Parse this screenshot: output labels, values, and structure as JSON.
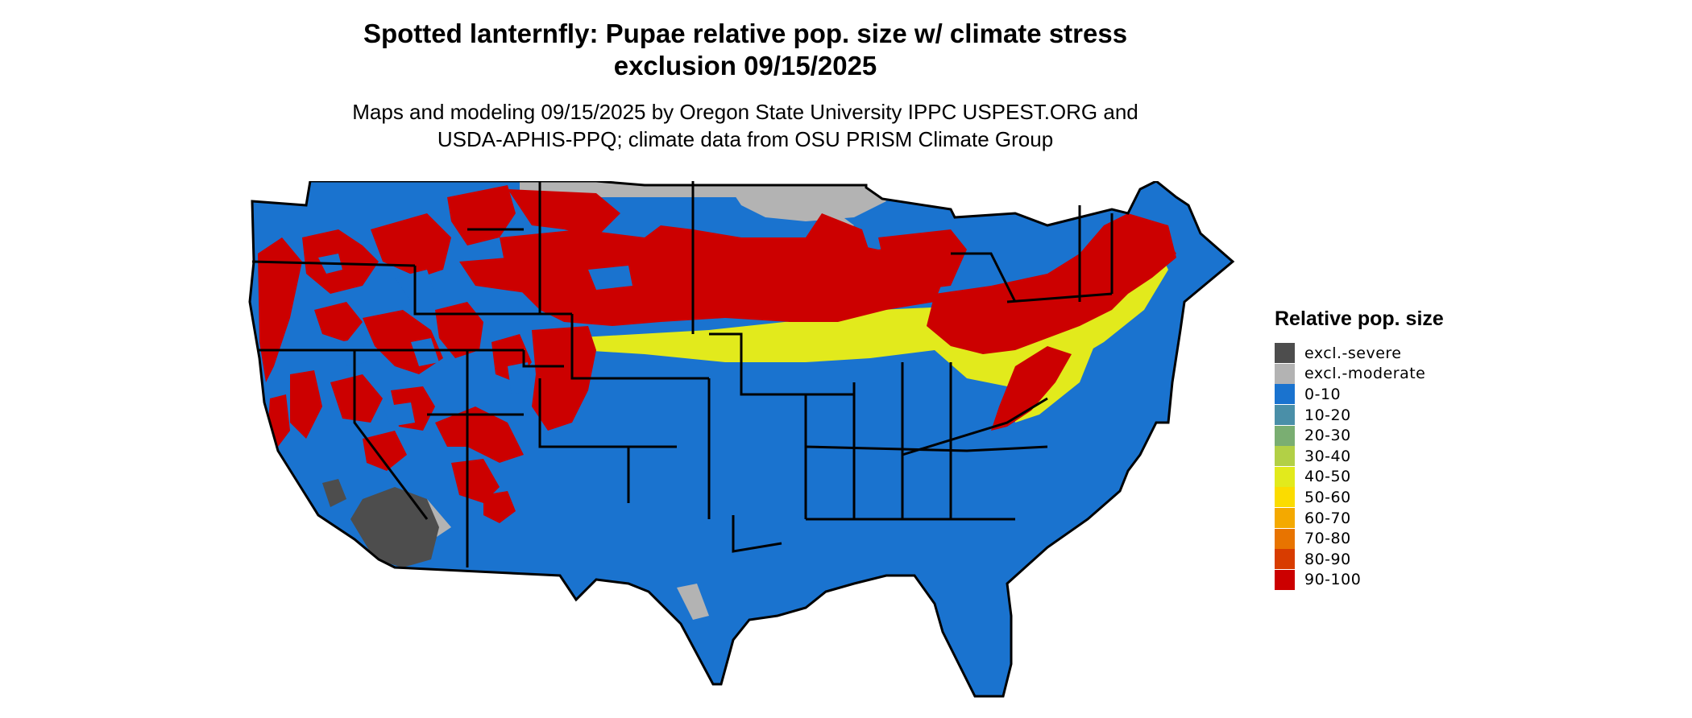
{
  "map": {
    "title_lines": [
      "Spotted lanternfly: Pupae relative pop. size w/ climate stress",
      "exclusion 09/15/2025"
    ],
    "subtitle_lines": [
      "Maps and modeling 09/15/2025 by Oregon State University IPPC USPEST.ORG and",
      "USDA-APHIS-PPQ; climate data from OSU PRISM Climate Group"
    ],
    "region": "Contiguous United States",
    "base_color": "#1a73cf",
    "border_color": "#000000"
  },
  "legend": {
    "title": "Relative pop. size",
    "items": [
      {
        "label": "excl.-severe",
        "color": "#4d4d4d"
      },
      {
        "label": "excl.-moderate",
        "color": "#b3b3b3"
      },
      {
        "label": "0-10",
        "color": "#1a73cf"
      },
      {
        "label": "10-20",
        "color": "#4a8fa8"
      },
      {
        "label": "20-30",
        "color": "#7aae72"
      },
      {
        "label": "30-40",
        "color": "#b2d046"
      },
      {
        "label": "40-50",
        "color": "#e2ea1c"
      },
      {
        "label": "50-60",
        "color": "#fbdc00"
      },
      {
        "label": "60-70",
        "color": "#f4a900"
      },
      {
        "label": "70-80",
        "color": "#e87400"
      },
      {
        "label": "80-90",
        "color": "#d83c00"
      },
      {
        "label": "90-100",
        "color": "#cc0000"
      }
    ]
  }
}
